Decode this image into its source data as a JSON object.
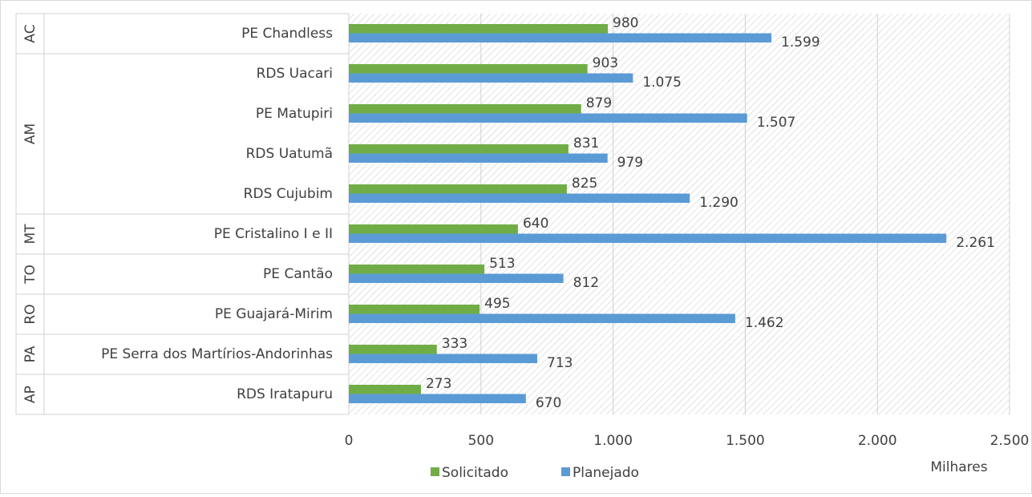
{
  "chart_data": {
    "type": "bar",
    "orientation": "horizontal",
    "category_groups": [
      {
        "label": "AC",
        "categories": [
          "PE Chandless"
        ]
      },
      {
        "label": "AM",
        "categories": [
          "RDS Uacari",
          "PE Matupiri",
          "RDS Uatumã",
          "RDS Cujubim"
        ]
      },
      {
        "label": "MT",
        "categories": [
          "PE Cristalino I e II"
        ]
      },
      {
        "label": "TO",
        "categories": [
          "PE Cantão"
        ]
      },
      {
        "label": "RO",
        "categories": [
          "PE Guajará-Mirim"
        ]
      },
      {
        "label": "PA",
        "categories": [
          "PE Serra dos Martírios-Andorinhas"
        ]
      },
      {
        "label": "AP",
        "categories": [
          "RDS Iratapuru"
        ]
      }
    ],
    "series": [
      {
        "name": "Solicitado",
        "color": "#70ad47",
        "values": [
          980,
          903,
          879,
          831,
          825,
          640,
          513,
          495,
          333,
          273
        ]
      },
      {
        "name": "Planejado",
        "color": "#5b9bd5",
        "values": [
          1599,
          1075,
          1507,
          979,
          1290,
          2261,
          812,
          1462,
          713,
          670
        ],
        "value_labels": [
          "1.599",
          "1.075",
          "1.507",
          "979",
          "1.290",
          "2.261",
          "812",
          "1.462",
          "713",
          "670"
        ]
      }
    ],
    "xlim": [
      0,
      2500
    ],
    "xticks": [
      0,
      500,
      {
        "value": 1000,
        "label": "1.000"
      },
      {
        "value": 1500,
        "label": "1.500"
      },
      {
        "value": 2000,
        "label": "2.000"
      },
      {
        "value": 2500,
        "label": "2.500"
      }
    ],
    "xlabel": "Milhares",
    "grid": true,
    "legend": "bottom"
  }
}
